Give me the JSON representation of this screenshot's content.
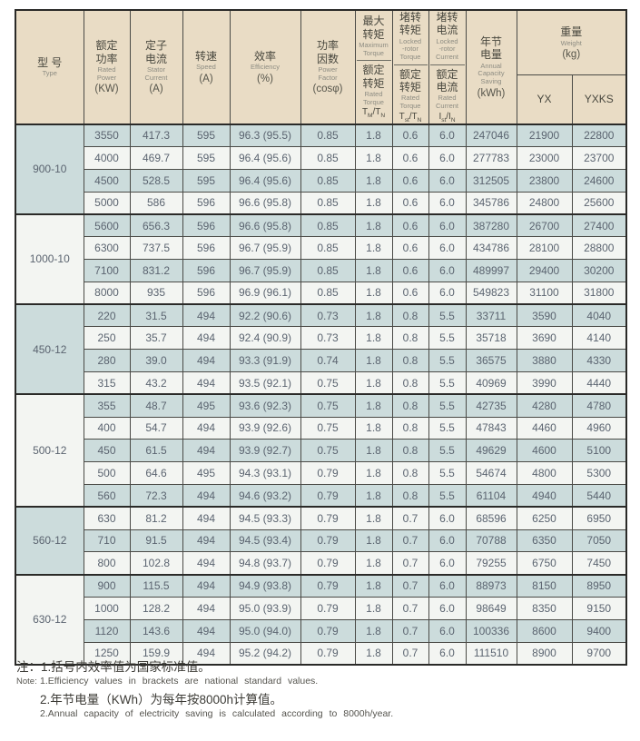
{
  "header": {
    "type": {
      "zh": "型 号",
      "en": "Type"
    },
    "rated_power": {
      "zh": "额定\n功率",
      "en": "Rated\nPower",
      "unit": "(KW)"
    },
    "stator_current": {
      "zh": "定子\n电流",
      "en": "Stator\nCurrent",
      "unit": "(A)"
    },
    "speed": {
      "zh": "转速",
      "en": "Speed",
      "unit": "(A)"
    },
    "efficiency": {
      "zh": "效率",
      "en": "Efficiency",
      "unit": "(%)"
    },
    "power_factor": {
      "zh": "功率\n因数",
      "en": "Power\nFactor",
      "unit": "(cosφ)"
    },
    "max_torque": {
      "top_zh": "最大\n转矩",
      "top_en": "Maximum\nTorque",
      "bot_zh": "额定\n转矩",
      "bot_en": "Rated\nTorque",
      "ratio": {
        "b1": "T",
        "s1": "M",
        "b2": "/T",
        "s2": "N"
      }
    },
    "locked_torque": {
      "top_zh": "堵转\n转矩",
      "top_en": "Locked\n-rotor\nTorque",
      "bot_zh": "额定\n转矩",
      "bot_en": "Rated\nTorque",
      "ratio": {
        "b1": "T",
        "s1": "st",
        "b2": "/T",
        "s2": "N"
      }
    },
    "locked_current": {
      "top_zh": "堵转\n电流",
      "top_en": "Locked\n-rotor\nCurrent",
      "bot_zh": "额定\n电流",
      "bot_en": "Rated\nCurrent",
      "ratio": {
        "b1": "I",
        "s1": "st",
        "b2": "/I",
        "s2": "N"
      }
    },
    "annual_saving": {
      "zh": "年节\n电量",
      "en": "Annual\nCapacity\nSaving",
      "unit": "(kWh)"
    },
    "weight": {
      "zh": "重量",
      "en": "Weight",
      "unit": "(kg)",
      "sub0": "YX",
      "sub1": "YXKS"
    }
  },
  "groups": [
    {
      "type": "900-10",
      "rows": [
        [
          "3550",
          "417.3",
          "595",
          "96.3 (95.5)",
          "0.85",
          "1.8",
          "0.6",
          "6.0",
          "247046",
          "21900",
          "22800"
        ],
        [
          "4000",
          "469.7",
          "595",
          "96.4 (95.6)",
          "0.85",
          "1.8",
          "0.6",
          "6.0",
          "277783",
          "23000",
          "23700"
        ],
        [
          "4500",
          "528.5",
          "595",
          "96.4 (95.6)",
          "0.85",
          "1.8",
          "0.6",
          "6.0",
          "312505",
          "23800",
          "24600"
        ],
        [
          "5000",
          "586",
          "596",
          "96.6 (95.8)",
          "0.85",
          "1.8",
          "0.6",
          "6.0",
          "345786",
          "24800",
          "25600"
        ]
      ]
    },
    {
      "type": "1000-10",
      "rows": [
        [
          "5600",
          "656.3",
          "596",
          "96.6 (95.8)",
          "0.85",
          "1.8",
          "0.6",
          "6.0",
          "387280",
          "26700",
          "27400"
        ],
        [
          "6300",
          "737.5",
          "596",
          "96.7 (95.9)",
          "0.85",
          "1.8",
          "0.6",
          "6.0",
          "434786",
          "28100",
          "28800"
        ],
        [
          "7100",
          "831.2",
          "596",
          "96.7 (95.9)",
          "0.85",
          "1.8",
          "0.6",
          "6.0",
          "489997",
          "29400",
          "30200"
        ],
        [
          "8000",
          "935",
          "596",
          "96.9 (96.1)",
          "0.85",
          "1.8",
          "0.6",
          "6.0",
          "549823",
          "31100",
          "31800"
        ]
      ]
    },
    {
      "type": "450-12",
      "rows": [
        [
          "220",
          "31.5",
          "494",
          "92.2 (90.6)",
          "0.73",
          "1.8",
          "0.8",
          "5.5",
          "33711",
          "3590",
          "4040"
        ],
        [
          "250",
          "35.7",
          "494",
          "92.4 (90.9)",
          "0.73",
          "1.8",
          "0.8",
          "5.5",
          "35718",
          "3690",
          "4140"
        ],
        [
          "280",
          "39.0",
          "494",
          "93.3 (91.9)",
          "0.74",
          "1.8",
          "0.8",
          "5.5",
          "36575",
          "3880",
          "4330"
        ],
        [
          "315",
          "43.2",
          "494",
          "93.5 (92.1)",
          "0.75",
          "1.8",
          "0.8",
          "5.5",
          "40969",
          "3990",
          "4440"
        ]
      ]
    },
    {
      "type": "500-12",
      "rows": [
        [
          "355",
          "48.7",
          "495",
          "93.6 (92.3)",
          "0.75",
          "1.8",
          "0.8",
          "5.5",
          "42735",
          "4280",
          "4780"
        ],
        [
          "400",
          "54.7",
          "494",
          "93.9 (92.6)",
          "0.75",
          "1.8",
          "0.8",
          "5.5",
          "47843",
          "4460",
          "4960"
        ],
        [
          "450",
          "61.5",
          "494",
          "93.9 (92.7)",
          "0.75",
          "1.8",
          "0.8",
          "5.5",
          "49629",
          "4600",
          "5100"
        ],
        [
          "500",
          "64.6",
          "495",
          "94.3 (93.1)",
          "0.79",
          "1.8",
          "0.8",
          "5.5",
          "54674",
          "4800",
          "5300"
        ],
        [
          "560",
          "72.3",
          "494",
          "94.6 (93.2)",
          "0.79",
          "1.8",
          "0.8",
          "5.5",
          "61104",
          "4940",
          "5440"
        ]
      ]
    },
    {
      "type": "560-12",
      "rows": [
        [
          "630",
          "81.2",
          "494",
          "94.5 (93.3)",
          "0.79",
          "1.8",
          "0.7",
          "6.0",
          "68596",
          "6250",
          "6950"
        ],
        [
          "710",
          "91.5",
          "494",
          "94.5 (93.4)",
          "0.79",
          "1.8",
          "0.7",
          "6.0",
          "70788",
          "6350",
          "7050"
        ],
        [
          "800",
          "102.8",
          "494",
          "94.8 (93.7)",
          "0.79",
          "1.8",
          "0.7",
          "6.0",
          "79255",
          "6750",
          "7450"
        ]
      ]
    },
    {
      "type": "630-12",
      "rows": [
        [
          "900",
          "115.5",
          "494",
          "94.9 (93.8)",
          "0.79",
          "1.8",
          "0.7",
          "6.0",
          "88973",
          "8150",
          "8950"
        ],
        [
          "1000",
          "128.2",
          "494",
          "95.0 (93.9)",
          "0.79",
          "1.8",
          "0.7",
          "6.0",
          "98649",
          "8350",
          "9150"
        ],
        [
          "1120",
          "143.6",
          "494",
          "95.0 (94.0)",
          "0.79",
          "1.8",
          "0.7",
          "6.0",
          "100336",
          "8600",
          "9400"
        ],
        [
          "1250",
          "159.9",
          "494",
          "95.2 (94.2)",
          "0.79",
          "1.8",
          "0.7",
          "6.0",
          "111510",
          "8900",
          "9700"
        ]
      ]
    },
    {
      "_colors": "row stripes"
    }
  ],
  "colors": {
    "header_bg": "#e9dcc5",
    "row_blue": "#ccdcdc",
    "row_light": "#f3f5f2",
    "border_dark": "#2a2a28"
  },
  "notes": {
    "label_zh": "注：",
    "label_en": "Note:",
    "line1_zh": "1.括号内效率值为国家标准值。",
    "line1_en": "1.Efficiency values in brackets are national standard values.",
    "line2_zh": "2.年节电量（KWh）为每年按8000h计算值。",
    "line2_en": "2.Annual capacity of electricity saving is calculated according to 8000h/year."
  }
}
